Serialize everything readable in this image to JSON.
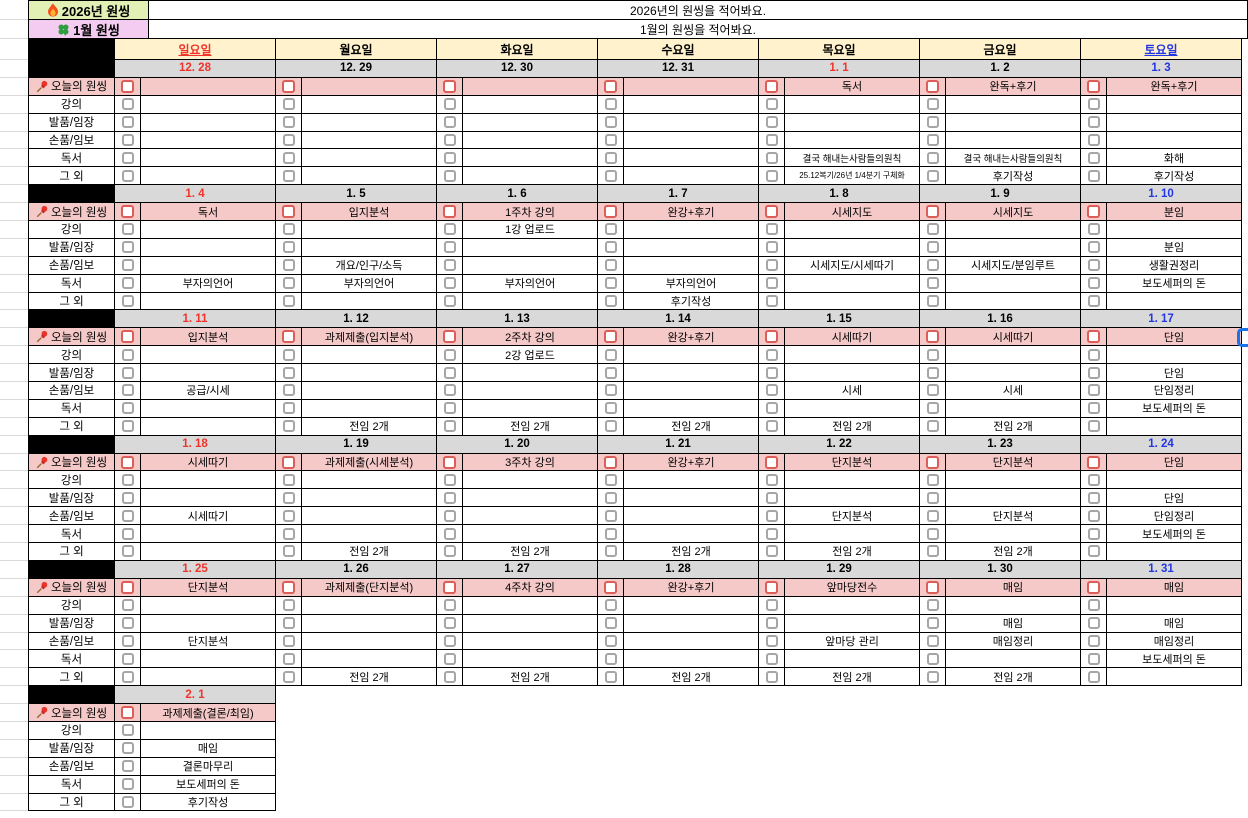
{
  "header": {
    "year_title": "2026년 원씽",
    "year_note": "2026년의 원씽을 적어봐요.",
    "month_title": "1월 원씽",
    "month_note": "1월의 원씽을 적어봐요.",
    "day_names": [
      {
        "label": "일요일",
        "color": "#f0342b",
        "underline": true
      },
      {
        "label": "월요일",
        "color": "#000000",
        "underline": false
      },
      {
        "label": "화요일",
        "color": "#000000",
        "underline": false
      },
      {
        "label": "수요일",
        "color": "#000000",
        "underline": false
      },
      {
        "label": "목요일",
        "color": "#000000",
        "underline": false
      },
      {
        "label": "금요일",
        "color": "#000000",
        "underline": false
      },
      {
        "label": "토요일",
        "color": "#2336e3",
        "underline": true
      }
    ]
  },
  "row_labels": [
    "오늘의 원씽",
    "강의",
    "발품/임장",
    "손품/임보",
    "독서",
    "그 외"
  ],
  "colors": {
    "red_text": "#f0342b",
    "blue_text": "#2336e3",
    "year_title_bg": "#e3f0b5",
    "month_title_bg": "#f5ccf1",
    "day_header_bg": "#fff2cc",
    "date_row_bg": "#d9d9d9",
    "onething_row_bg": "#f6c9c9",
    "checkbox_red": "#db5f58",
    "checkbox_gray": "#a6a6a6",
    "selection_blue": "#1a73e8",
    "grid_black": "#000000",
    "gutter_line": "#d9d9d9"
  },
  "weeks": [
    {
      "dates": [
        {
          "label": "12. 28",
          "color": "#f0342b"
        },
        {
          "label": "12. 29",
          "color": "#000000"
        },
        {
          "label": "12. 30",
          "color": "#000000"
        },
        {
          "label": "12. 31",
          "color": "#000000"
        },
        {
          "label": "1. 1",
          "color": "#f0342b"
        },
        {
          "label": "1. 2",
          "color": "#000000"
        },
        {
          "label": "1. 3",
          "color": "#2336e3"
        }
      ],
      "rows": [
        [
          "",
          "",
          "",
          "",
          "독서",
          "완독+후기",
          "완독+후기"
        ],
        [
          "",
          "",
          "",
          "",
          "",
          "",
          ""
        ],
        [
          "",
          "",
          "",
          "",
          "",
          "",
          ""
        ],
        [
          "",
          "",
          "",
          "",
          "",
          "",
          ""
        ],
        [
          "",
          "",
          "",
          "",
          "결국 해내는사람들의원칙",
          "결국 해내는사람들의원칙",
          "화해"
        ],
        [
          "",
          "",
          "",
          "",
          "25.12복기/26년 1/4분기 구체화",
          "후기작성",
          "후기작성"
        ]
      ]
    },
    {
      "dates": [
        {
          "label": "1. 4",
          "color": "#f0342b"
        },
        {
          "label": "1. 5",
          "color": "#000000"
        },
        {
          "label": "1. 6",
          "color": "#000000"
        },
        {
          "label": "1. 7",
          "color": "#000000"
        },
        {
          "label": "1. 8",
          "color": "#000000"
        },
        {
          "label": "1. 9",
          "color": "#000000"
        },
        {
          "label": "1. 10",
          "color": "#2336e3"
        }
      ],
      "rows": [
        [
          "독서",
          "입지분석",
          "1주차 강의",
          "완강+후기",
          "시세지도",
          "시세지도",
          "분임"
        ],
        [
          "",
          "",
          "1강 업로드",
          "",
          "",
          "",
          ""
        ],
        [
          "",
          "",
          "",
          "",
          "",
          "",
          "분임"
        ],
        [
          "",
          "개요/인구/소득",
          "",
          "",
          "시세지도/시세따기",
          "시세지도/분임루트",
          "생활권정리"
        ],
        [
          "부자의언어",
          "부자의언어",
          "부자의언어",
          "부자의언어",
          "",
          "",
          "보도세퍼의 돈"
        ],
        [
          "",
          "",
          "",
          "후기작성",
          "",
          "",
          ""
        ]
      ]
    },
    {
      "dates": [
        {
          "label": "1. 11",
          "color": "#f0342b"
        },
        {
          "label": "1. 12",
          "color": "#000000"
        },
        {
          "label": "1. 13",
          "color": "#000000"
        },
        {
          "label": "1. 14",
          "color": "#000000"
        },
        {
          "label": "1. 15",
          "color": "#000000"
        },
        {
          "label": "1. 16",
          "color": "#000000"
        },
        {
          "label": "1. 17",
          "color": "#2336e3"
        }
      ],
      "rows": [
        [
          "입지분석",
          "과제제출(입지분석)",
          "2주차 강의",
          "완강+후기",
          "시세따기",
          "시세따기",
          "단임"
        ],
        [
          "",
          "",
          "2강 업로드",
          "",
          "",
          "",
          ""
        ],
        [
          "",
          "",
          "",
          "",
          "",
          "",
          "단임"
        ],
        [
          "공급/시세",
          "",
          "",
          "",
          "시세",
          "시세",
          "단임정리"
        ],
        [
          "",
          "",
          "",
          "",
          "",
          "",
          "보도세퍼의 돈"
        ],
        [
          "",
          "전임 2개",
          "전임 2개",
          "전임 2개",
          "전임 2개",
          "전임 2개",
          ""
        ]
      ]
    },
    {
      "dates": [
        {
          "label": "1. 18",
          "color": "#f0342b"
        },
        {
          "label": "1. 19",
          "color": "#000000"
        },
        {
          "label": "1. 20",
          "color": "#000000"
        },
        {
          "label": "1. 21",
          "color": "#000000"
        },
        {
          "label": "1. 22",
          "color": "#000000"
        },
        {
          "label": "1. 23",
          "color": "#000000"
        },
        {
          "label": "1. 24",
          "color": "#2336e3"
        }
      ],
      "rows": [
        [
          "시세따기",
          "과제제출(시세분석)",
          "3주차 강의",
          "완강+후기",
          "단지분석",
          "단지분석",
          "단임"
        ],
        [
          "",
          "",
          "",
          "",
          "",
          "",
          ""
        ],
        [
          "",
          "",
          "",
          "",
          "",
          "",
          "단임"
        ],
        [
          "시세따기",
          "",
          "",
          "",
          "단지분석",
          "단지분석",
          "단임정리"
        ],
        [
          "",
          "",
          "",
          "",
          "",
          "",
          "보도세퍼의 돈"
        ],
        [
          "",
          "전임 2개",
          "전임 2개",
          "전임 2개",
          "전임 2개",
          "전임 2개",
          ""
        ]
      ]
    },
    {
      "dates": [
        {
          "label": "1. 25",
          "color": "#f0342b"
        },
        {
          "label": "1. 26",
          "color": "#000000"
        },
        {
          "label": "1. 27",
          "color": "#000000"
        },
        {
          "label": "1. 28",
          "color": "#000000"
        },
        {
          "label": "1. 29",
          "color": "#000000"
        },
        {
          "label": "1. 30",
          "color": "#000000"
        },
        {
          "label": "1. 31",
          "color": "#2336e3"
        }
      ],
      "rows": [
        [
          "단지분석",
          "과제제출(단지분석)",
          "4주차 강의",
          "완강+후기",
          "앞마당전수",
          "매임",
          "매임"
        ],
        [
          "",
          "",
          "",
          "",
          "",
          "",
          ""
        ],
        [
          "",
          "",
          "",
          "",
          "",
          "매임",
          "매임"
        ],
        [
          "단지분석",
          "",
          "",
          "",
          "앞마당 관리",
          "매임정리",
          "매임정리"
        ],
        [
          "",
          "",
          "",
          "",
          "",
          "",
          "보도세퍼의 돈"
        ],
        [
          "",
          "전임 2개",
          "전임 2개",
          "전임 2개",
          "전임 2개",
          "전임 2개",
          ""
        ]
      ]
    },
    {
      "dates": [
        {
          "label": "2. 1",
          "color": "#f0342b"
        }
      ],
      "rows": [
        [
          "과제제출(결론/최임)"
        ],
        [
          ""
        ],
        [
          "매임"
        ],
        [
          "결론마무리"
        ],
        [
          "보도세퍼의 돈"
        ],
        [
          "후기작성"
        ]
      ]
    }
  ]
}
